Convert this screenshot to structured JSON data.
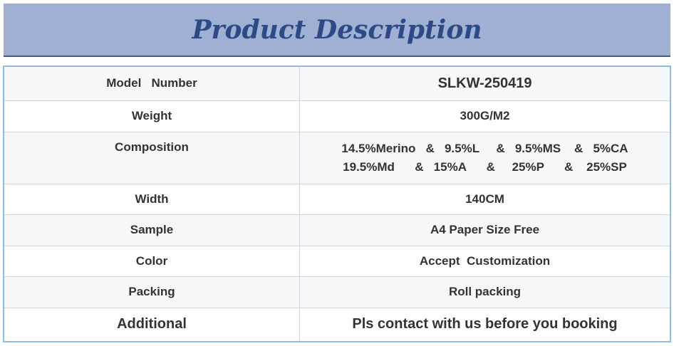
{
  "title": "Product Description",
  "rows": [
    {
      "label": "Model   Number",
      "value": "SLKW-250419"
    },
    {
      "label": "Weight",
      "value": "300G/M2"
    },
    {
      "label": "Composition",
      "value_lines": [
        "14.5%Merino   &   9.5%L     &   9.5%MS    &   5%CA",
        "19.5%Md      &   15%A      &     25%P      &    25%SP"
      ]
    },
    {
      "label": "Width",
      "value": "140CM"
    },
    {
      "label": "Sample",
      "value": "A4 Paper Size Free"
    },
    {
      "label": "Color",
      "value": "Accept  Customization"
    },
    {
      "label": "Packing",
      "value": "Roll packing"
    },
    {
      "label": "Additional",
      "value": "Pls contact with us before you booking"
    }
  ]
}
